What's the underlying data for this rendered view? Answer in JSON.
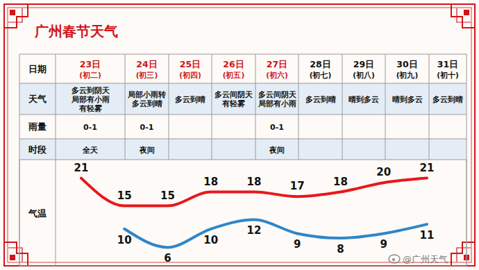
{
  "chart_data": {
    "type": "line",
    "title": "广州春节天气",
    "row_labels": {
      "date": "日期",
      "weather": "天气",
      "rain": "雨量",
      "period": "时段",
      "temp": "气温"
    },
    "categories": [
      "23日",
      "24日",
      "25日",
      "26日",
      "27日",
      "28日",
      "29日",
      "30日",
      "31日"
    ],
    "lunar": [
      "(初二)",
      "(初三)",
      "(初四)",
      "(初五)",
      "(初六)",
      "(初七)",
      "(初八)",
      "(初九)",
      "(初十)"
    ],
    "weather": [
      [
        "多云到阴天",
        "局部有小雨",
        "有轻雾"
      ],
      [
        "局部小雨转",
        "多云到晴"
      ],
      [
        "多云到晴"
      ],
      [
        "多云间阴天",
        "有轻雾"
      ],
      [
        "多云间阴天",
        "局部有小雨"
      ],
      [
        "多云到晴"
      ],
      [
        "晴到多云"
      ],
      [
        "晴到多云"
      ],
      [
        "多云到晴"
      ]
    ],
    "rainfall": [
      "0-1",
      "0-1",
      null,
      null,
      "0-1",
      null,
      null,
      null,
      null
    ],
    "period": [
      "全天",
      "夜间",
      null,
      null,
      "夜间",
      null,
      null,
      null,
      null
    ],
    "series": [
      {
        "color": "#e8171c",
        "values": [
          21,
          15,
          15,
          18,
          18,
          17,
          18,
          20,
          21
        ]
      },
      {
        "color": "#2f86c8",
        "values": [
          null,
          10,
          6,
          10,
          12,
          9,
          8,
          9,
          11
        ]
      }
    ],
    "ylim": [
      2,
      25
    ],
    "tick_labels": false,
    "data_labels": true,
    "source": "@广州天气"
  }
}
